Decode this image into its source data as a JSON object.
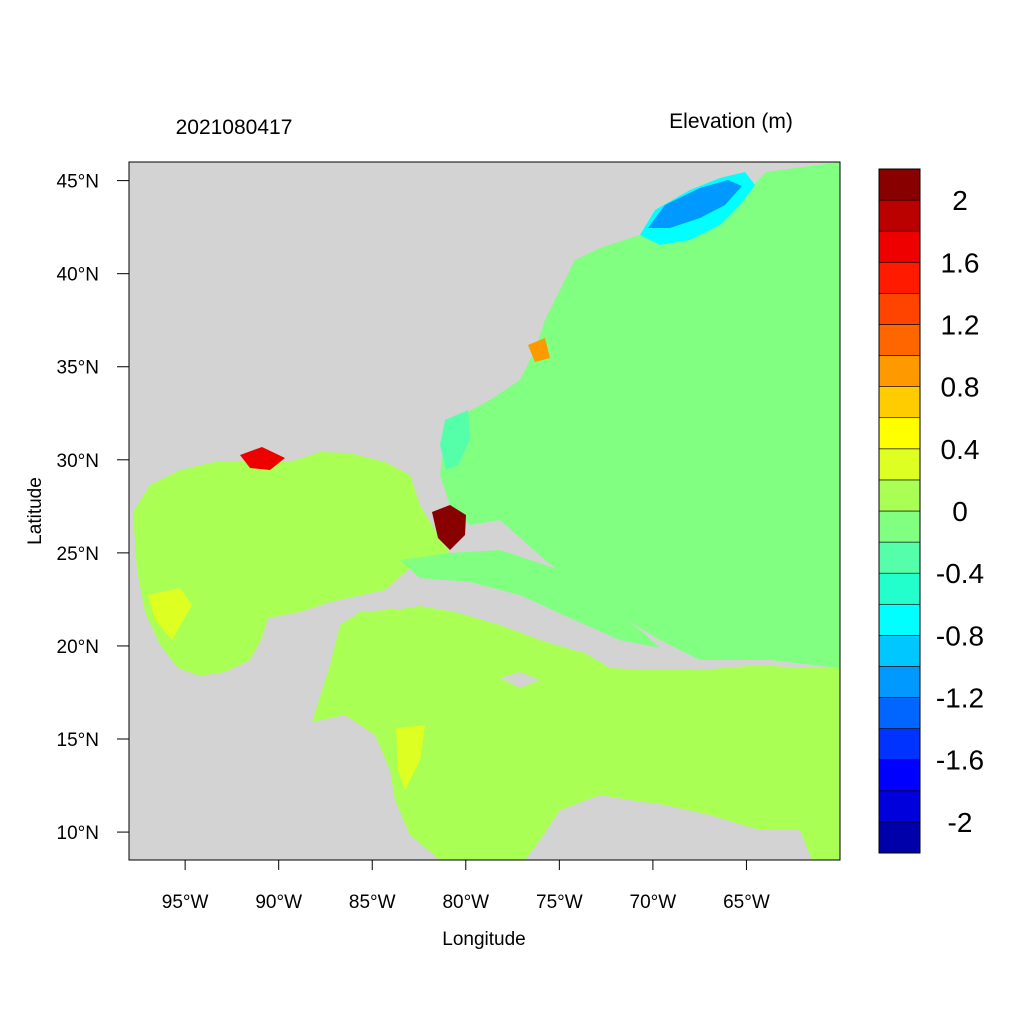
{
  "title_left": "2021080417",
  "title_right": "Elevation (m)",
  "xlabel": "Longitude",
  "ylabel": "Latitude",
  "colors": {
    "land": "#d3d3d3",
    "ocean_main": "#80ff80",
    "gulf_caribbean": "#aaff55",
    "frame": "#000000"
  },
  "chart_data": {
    "type": "heatmap",
    "variable": "Elevation (m)",
    "timestamp": "2021080417",
    "xlim": [
      -98,
      -60
    ],
    "ylim": [
      8.5,
      46
    ],
    "x_ticks": [
      {
        "value": -95,
        "label": "95°W"
      },
      {
        "value": -90,
        "label": "90°W"
      },
      {
        "value": -85,
        "label": "85°W"
      },
      {
        "value": -80,
        "label": "80°W"
      },
      {
        "value": -75,
        "label": "75°W"
      },
      {
        "value": -70,
        "label": "70°W"
      },
      {
        "value": -65,
        "label": "65°W"
      }
    ],
    "y_ticks": [
      {
        "value": 45,
        "label": "45°N"
      },
      {
        "value": 40,
        "label": "40°N"
      },
      {
        "value": 35,
        "label": "35°N"
      },
      {
        "value": 30,
        "label": "30°N"
      },
      {
        "value": 25,
        "label": "25°N"
      },
      {
        "value": 20,
        "label": "20°N"
      },
      {
        "value": 15,
        "label": "15°N"
      },
      {
        "value": 10,
        "label": "10°N"
      }
    ],
    "colorbar": {
      "levels": [
        -2.2,
        -2.0,
        -1.8,
        -1.6,
        -1.4,
        -1.2,
        -1.0,
        -0.8,
        -0.6,
        -0.4,
        -0.2,
        0.0,
        0.2,
        0.4,
        0.6,
        0.8,
        1.0,
        1.2,
        1.4,
        1.6,
        1.8,
        2.0,
        2.2
      ],
      "colors": [
        "#0000aa",
        "#0000dd",
        "#0000ff",
        "#0033ff",
        "#0066ff",
        "#0099ff",
        "#00c8ff",
        "#00ffff",
        "#22ffcc",
        "#55ffaa",
        "#80ff80",
        "#aaff55",
        "#ddff22",
        "#ffff00",
        "#ffcc00",
        "#ff9900",
        "#ff6600",
        "#ff4400",
        "#ff1a00",
        "#ee0000",
        "#bb0000",
        "#880000"
      ],
      "labels": [
        "-2",
        "-1.6",
        "-1.2",
        "-0.8",
        "-0.4",
        "0",
        "0.4",
        "0.8",
        "1.2",
        "1.6",
        "2"
      ],
      "label_values": [
        -2.0,
        -1.6,
        -1.2,
        -0.8,
        -0.4,
        0.0,
        0.4,
        0.8,
        1.2,
        1.6,
        2.0
      ]
    }
  }
}
